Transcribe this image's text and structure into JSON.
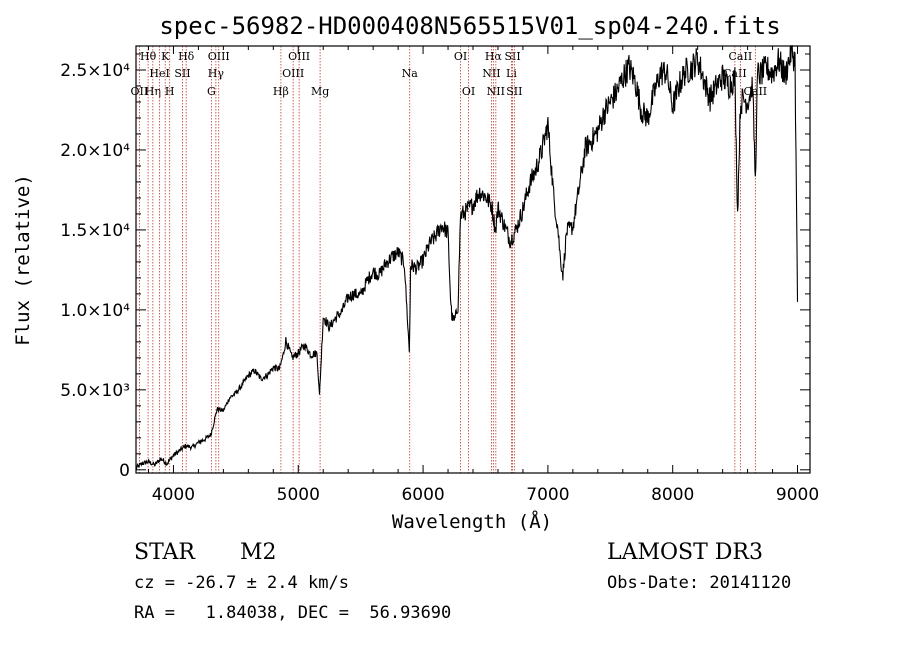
{
  "chart_data": {
    "type": "line",
    "title": "spec-56982-HD000408N565515V01_sp04-240.fits",
    "xlabel": "Wavelength (Å)",
    "ylabel": "Flux (relative)",
    "xlim": [
      3700,
      9100
    ],
    "ylim": [
      -200,
      26500
    ],
    "x_ticks": [
      {
        "value": 4000,
        "label": "4000"
      },
      {
        "value": 5000,
        "label": "5000"
      },
      {
        "value": 6000,
        "label": "6000"
      },
      {
        "value": 7000,
        "label": "7000"
      },
      {
        "value": 8000,
        "label": "8000"
      },
      {
        "value": 9000,
        "label": "9000"
      }
    ],
    "y_ticks": [
      {
        "value": 0,
        "label": "0"
      },
      {
        "value": 5000,
        "label": "5.0×10³"
      },
      {
        "value": 10000,
        "label": "1.0×10⁴"
      },
      {
        "value": 15000,
        "label": "1.5×10⁴"
      },
      {
        "value": 20000,
        "label": "2.0×10⁴"
      },
      {
        "value": 25000,
        "label": "2.5×10⁴"
      }
    ],
    "series": [
      {
        "name": "flux",
        "x": [
          3700,
          3750,
          3800,
          3850,
          3900,
          3950,
          4000,
          4050,
          4100,
          4150,
          4200,
          4250,
          4300,
          4350,
          4400,
          4450,
          4500,
          4550,
          4600,
          4650,
          4700,
          4750,
          4800,
          4850,
          4880,
          4900,
          4950,
          5000,
          5050,
          5100,
          5150,
          5170,
          5200,
          5250,
          5300,
          5350,
          5400,
          5450,
          5500,
          5550,
          5600,
          5650,
          5700,
          5750,
          5800,
          5850,
          5890,
          5895,
          5900,
          5950,
          6000,
          6050,
          6100,
          6150,
          6200,
          6220,
          6230,
          6250,
          6280,
          6300,
          6350,
          6400,
          6450,
          6500,
          6550,
          6580,
          6600,
          6650,
          6700,
          6750,
          6800,
          6850,
          6900,
          6950,
          7000,
          7050,
          7080,
          7100,
          7120,
          7150,
          7200,
          7250,
          7300,
          7350,
          7400,
          7450,
          7500,
          7550,
          7600,
          7650,
          7700,
          7750,
          7800,
          7850,
          7900,
          7950,
          8000,
          8050,
          8100,
          8150,
          8200,
          8250,
          8300,
          8350,
          8400,
          8450,
          8498,
          8520,
          8542,
          8560,
          8600,
          8640,
          8662,
          8680,
          8700,
          8750,
          8800,
          8850,
          8900,
          8950,
          8980,
          9000
        ],
        "y": [
          100,
          400,
          500,
          300,
          700,
          400,
          900,
          1200,
          1500,
          1400,
          1700,
          1900,
          2200,
          3800,
          3700,
          4500,
          4800,
          5300,
          5900,
          6200,
          5700,
          5900,
          6400,
          6300,
          7200,
          8100,
          7000,
          7300,
          7800,
          7200,
          7300,
          4600,
          9600,
          8900,
          9500,
          9900,
          10800,
          11000,
          10900,
          11800,
          12400,
          12200,
          12900,
          13300,
          13600,
          12900,
          7400,
          9800,
          12800,
          12600,
          13100,
          14100,
          14600,
          15300,
          14800,
          10800,
          9600,
          9300,
          10200,
          15900,
          16200,
          16600,
          17400,
          17100,
          16500,
          15000,
          16400,
          15300,
          14300,
          15100,
          16300,
          17800,
          18700,
          19900,
          21600,
          16800,
          15100,
          13200,
          12200,
          14900,
          15200,
          17600,
          20100,
          20600,
          21200,
          22300,
          23000,
          23600,
          24500,
          25200,
          24300,
          22400,
          22000,
          23500,
          24800,
          24900,
          22700,
          24000,
          24900,
          25100,
          25700,
          24400,
          23200,
          24000,
          24600,
          24000,
          24500,
          16000,
          22700,
          23200,
          23000,
          24100,
          18000,
          24800,
          24700,
          25100,
          24800,
          25600,
          24600,
          26200,
          25600,
          10500
        ]
      }
    ],
    "lines": [
      {
        "x": 3727,
        "text": "OII",
        "row": 2
      },
      {
        "x": 3797,
        "text": "Hθ",
        "row": 0
      },
      {
        "x": 3835,
        "text": "Hη",
        "row": 2
      },
      {
        "x": 3889,
        "text": "HeI",
        "row": 1
      },
      {
        "x": 3934,
        "text": "K",
        "row": 0
      },
      {
        "x": 3970,
        "text": "H",
        "row": 2
      },
      {
        "x": 4072,
        "text": "SII",
        "row": 1
      },
      {
        "x": 4102,
        "text": "Hδ",
        "row": 0
      },
      {
        "x": 4304,
        "text": "G",
        "row": 2
      },
      {
        "x": 4340,
        "text": "Hγ",
        "row": 1
      },
      {
        "x": 4363,
        "text": "OIII",
        "row": 0
      },
      {
        "x": 4861,
        "text": "Hβ",
        "row": 2
      },
      {
        "x": 4959,
        "text": "OIII",
        "row": 1
      },
      {
        "x": 5007,
        "text": "OIII",
        "row": 0
      },
      {
        "x": 5175,
        "text": "Mg",
        "row": 2
      },
      {
        "x": 5893,
        "text": "Na",
        "row": 1
      },
      {
        "x": 6300,
        "text": "OI",
        "row": 0
      },
      {
        "x": 6364,
        "text": "OI",
        "row": 2
      },
      {
        "x": 6548,
        "text": "NII",
        "row": 1
      },
      {
        "x": 6563,
        "text": "Hα",
        "row": 0
      },
      {
        "x": 6583,
        "text": "NII",
        "row": 2
      },
      {
        "x": 6708,
        "text": "Li",
        "row": 1
      },
      {
        "x": 6717,
        "text": "SII",
        "row": 0
      },
      {
        "x": 6731,
        "text": "SII",
        "row": 2
      },
      {
        "x": 8498,
        "text": "CaII",
        "row": 1
      },
      {
        "x": 8542,
        "text": "CaII",
        "row": 0
      },
      {
        "x": 8662,
        "text": "CaII",
        "row": 2
      }
    ]
  },
  "info": {
    "object_class": "STAR",
    "subclass": "M2",
    "survey": "LAMOST DR3",
    "redshift_line": "cz = -26.7 ± 2.4 km/s",
    "obs_date_line": "Obs-Date: 20141120",
    "coords_line": "RA =   1.84038, DEC =  56.93690"
  }
}
